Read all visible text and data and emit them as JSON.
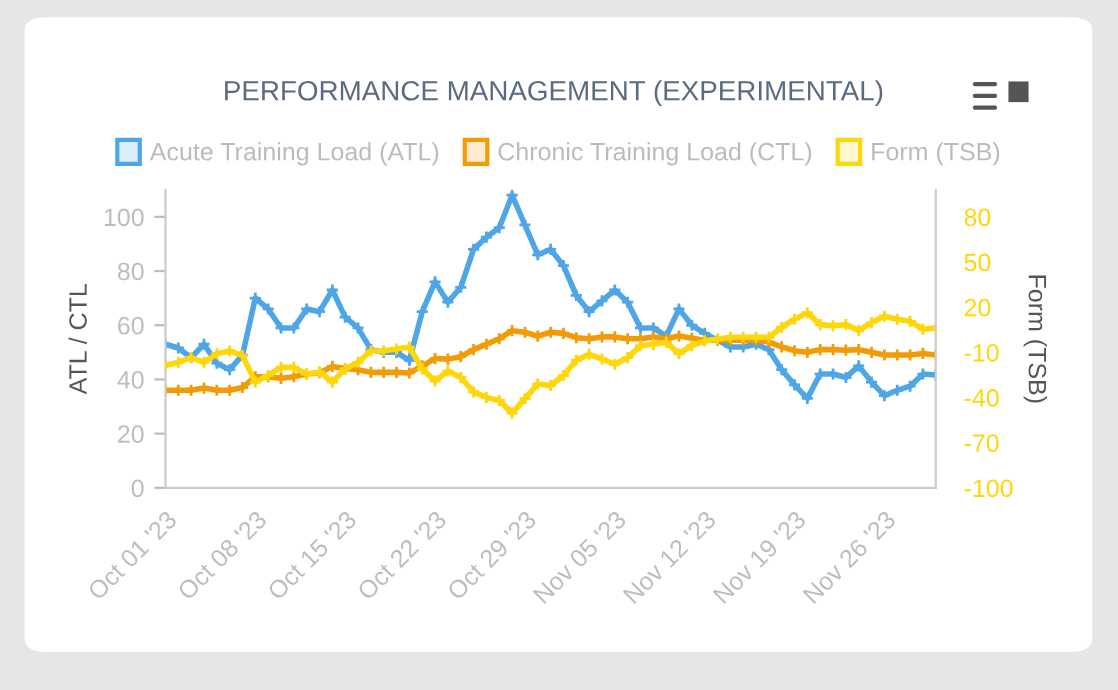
{
  "chart_data": {
    "type": "line",
    "title": "PERFORMANCE MANAGEMENT (EXPERIMENTAL)",
    "ylabel": "ATL / CTL",
    "y2label": "Form (TSB)",
    "x": [
      "2023-10-01",
      "2023-10-02",
      "2023-10-03",
      "2023-10-04",
      "2023-10-05",
      "2023-10-06",
      "2023-10-07",
      "2023-10-08",
      "2023-10-09",
      "2023-10-10",
      "2023-10-11",
      "2023-10-12",
      "2023-10-13",
      "2023-10-14",
      "2023-10-15",
      "2023-10-16",
      "2023-10-17",
      "2023-10-18",
      "2023-10-19",
      "2023-10-20",
      "2023-10-21",
      "2023-10-22",
      "2023-10-23",
      "2023-10-24",
      "2023-10-25",
      "2023-10-26",
      "2023-10-27",
      "2023-10-28",
      "2023-10-29",
      "2023-10-30",
      "2023-10-31",
      "2023-11-01",
      "2023-11-02",
      "2023-11-03",
      "2023-11-04",
      "2023-11-05",
      "2023-11-06",
      "2023-11-07",
      "2023-11-08",
      "2023-11-09",
      "2023-11-10",
      "2023-11-11",
      "2023-11-12",
      "2023-11-13",
      "2023-11-14",
      "2023-11-15",
      "2023-11-16",
      "2023-11-17",
      "2023-11-18",
      "2023-11-19",
      "2023-11-20",
      "2023-11-21",
      "2023-11-22",
      "2023-11-23",
      "2023-11-24",
      "2023-11-25",
      "2023-11-26",
      "2023-11-27",
      "2023-11-28",
      "2023-11-29",
      "2023-11-30"
    ],
    "series": [
      {
        "name": "Acute Training Load (ATL)",
        "color": "#4ea6e6",
        "values": [
          53,
          51.6,
          48,
          53,
          46,
          43.6,
          49,
          70,
          66,
          59,
          59,
          66,
          65,
          73,
          63,
          59,
          51,
          50,
          50,
          47,
          65,
          76,
          68.5,
          74,
          88,
          92.5,
          96,
          108,
          97,
          86,
          88,
          82,
          71,
          65,
          69,
          73,
          68.5,
          59,
          59,
          56,
          66,
          60,
          57,
          54.5,
          52,
          52,
          53,
          51,
          43.6,
          38,
          33,
          42,
          42,
          40.7,
          45,
          39,
          34,
          36,
          37.5,
          42,
          41.6
        ]
      },
      {
        "name": "Chronic Training Load (CTL)",
        "color": "#f29b05",
        "values": [
          36,
          36,
          36,
          36.8,
          36,
          36,
          37,
          41,
          41,
          40.4,
          41,
          42,
          42.5,
          44.8,
          44,
          43.6,
          42.6,
          42.6,
          42.6,
          42.4,
          45,
          47.7,
          47.5,
          48.4,
          51,
          53,
          55,
          58,
          57.4,
          56,
          57.4,
          57,
          55.4,
          55,
          55.7,
          55.7,
          55,
          55,
          55.7,
          55,
          56,
          55.2,
          54.5,
          54.5,
          54.5,
          54.5,
          54.5,
          53.8,
          52,
          50.6,
          50,
          51,
          51,
          50.8,
          51,
          50,
          49,
          49,
          49,
          49.6,
          49
        ]
      },
      {
        "name": "Form (TSB)",
        "color": "#ffd60a",
        "axis": "y2",
        "values": [
          -18.8,
          -16.6,
          -13.5,
          -16.6,
          -10.9,
          -9.1,
          -12.2,
          -29.8,
          -25.4,
          -20,
          -20,
          -24.5,
          -23,
          -29.8,
          -21,
          -16.6,
          -9.1,
          -9,
          -7.8,
          -6.5,
          -21,
          -29,
          -22.3,
          -26.7,
          -36.3,
          -39.9,
          -42,
          -50.4,
          -40.7,
          -31,
          -32,
          -25.4,
          -15.3,
          -11.3,
          -14.4,
          -17.9,
          -13.5,
          -5.6,
          -4.7,
          -3.4,
          -10.9,
          -5.6,
          -2.5,
          -1.2,
          0,
          0,
          0,
          0,
          6.7,
          12,
          16.3,
          8.4,
          7.6,
          8.4,
          4.5,
          9.8,
          14,
          12,
          10.6,
          5.4,
          6.2
        ]
      }
    ],
    "xlim": [
      "2023-10-01",
      "2023-11-30"
    ],
    "xticks": [
      {
        "value": "2023-10-01",
        "label": "Oct 01 '23"
      },
      {
        "value": "2023-10-08",
        "label": "Oct 08 '23"
      },
      {
        "value": "2023-10-15",
        "label": "Oct 15 '23"
      },
      {
        "value": "2023-10-22",
        "label": "Oct 22 '23"
      },
      {
        "value": "2023-10-29",
        "label": "Oct 29 '23"
      },
      {
        "value": "2023-11-05",
        "label": "Nov 05 '23"
      },
      {
        "value": "2023-11-12",
        "label": "Nov 12 '23"
      },
      {
        "value": "2023-11-19",
        "label": "Nov 19 '23"
      },
      {
        "value": "2023-11-26",
        "label": "Nov 26 '23"
      }
    ],
    "ylim": [
      0,
      110
    ],
    "yticks": [
      0,
      20,
      40,
      60,
      80,
      100
    ],
    "y2lim": [
      -100,
      98
    ],
    "y2ticks": [
      -100,
      -70,
      -40,
      -10,
      20,
      50,
      80
    ],
    "grid": false,
    "legend": "top",
    "marker": "cross",
    "line_style": "solid"
  }
}
